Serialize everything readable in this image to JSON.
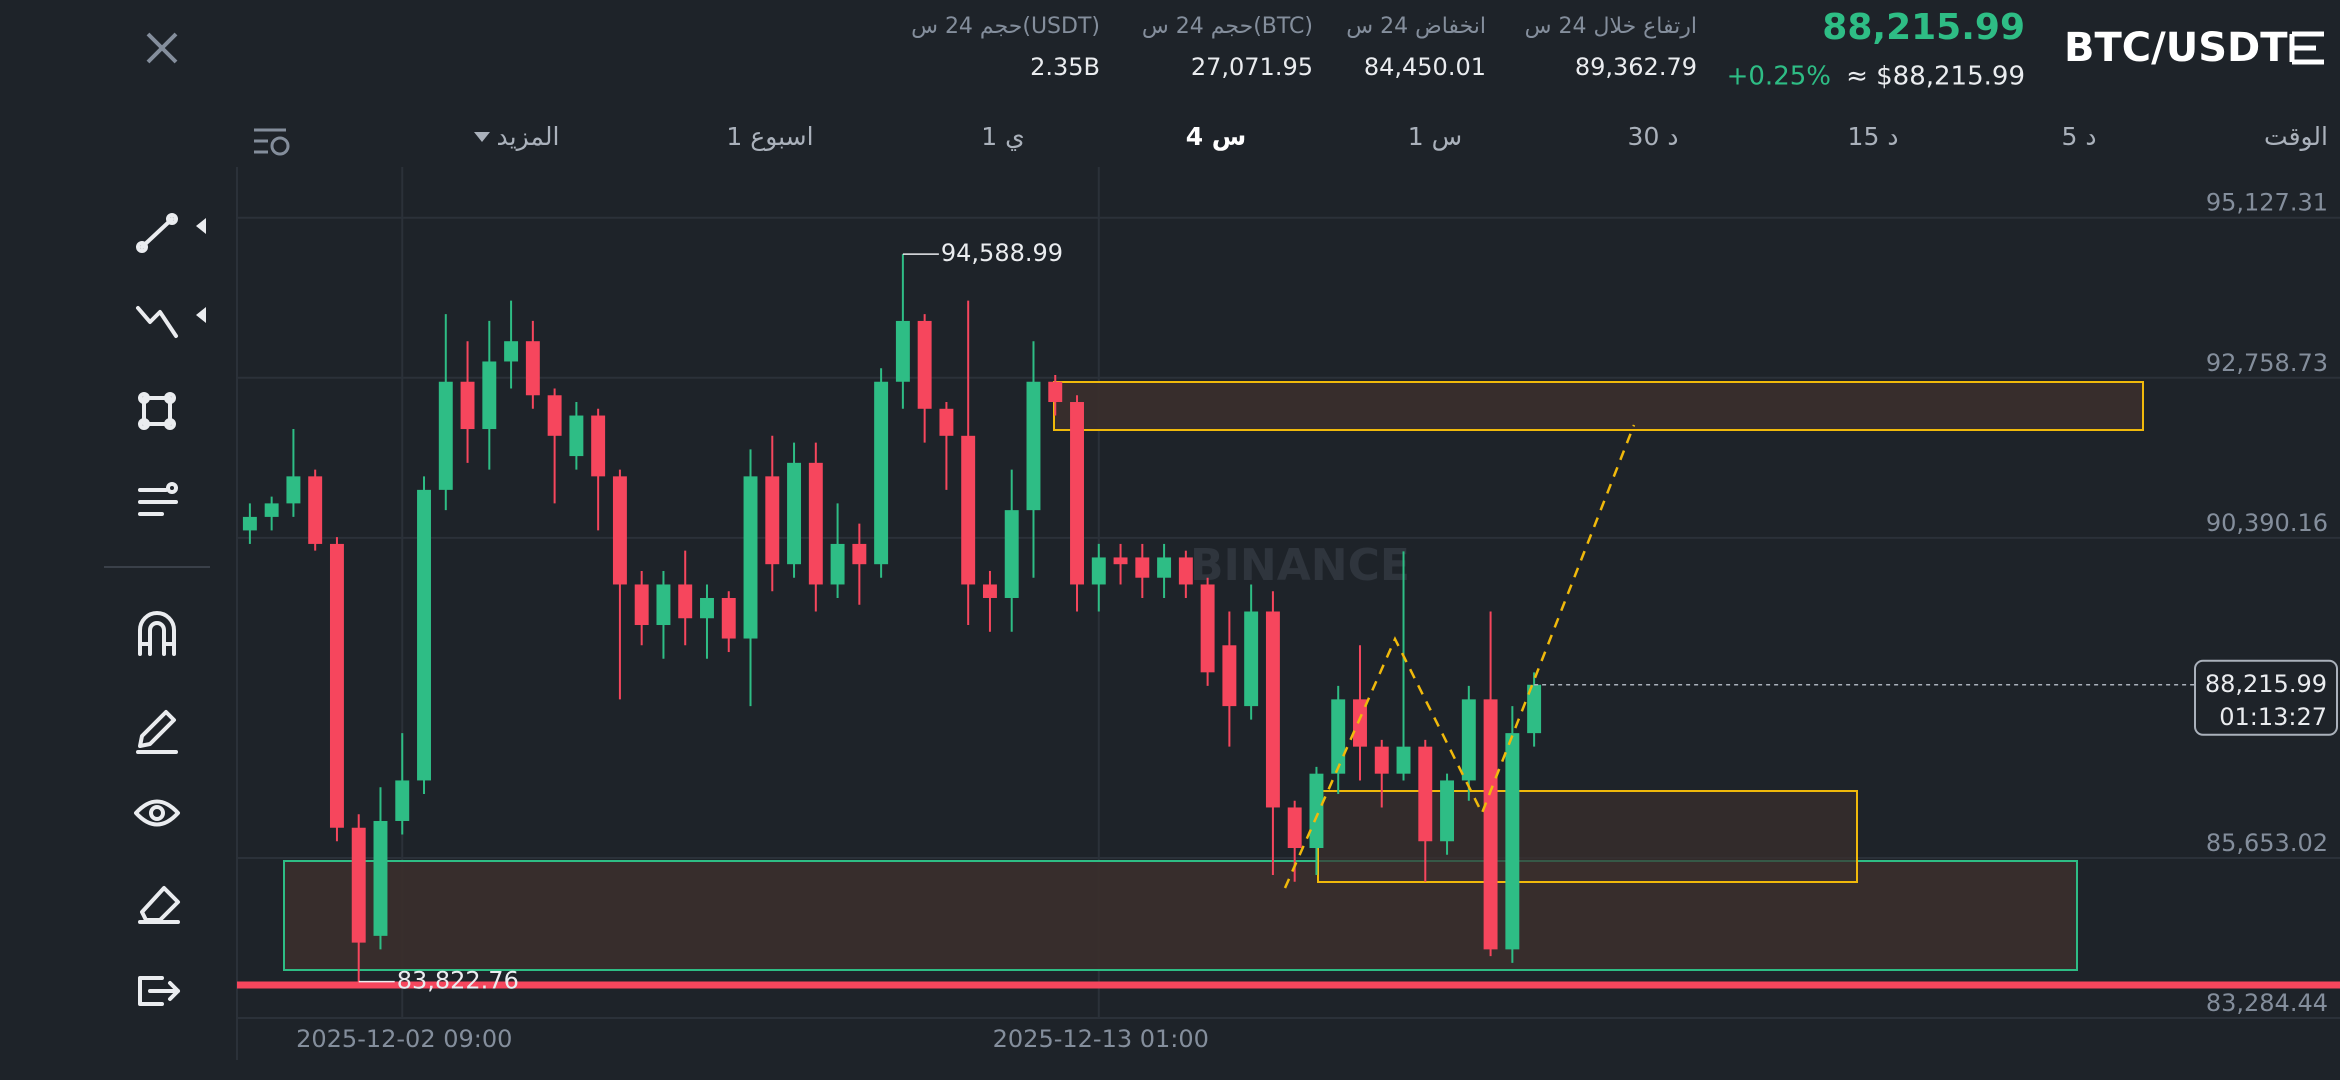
{
  "header": {
    "pair": "BTC/USDT",
    "price": "88,215.99",
    "change": "+0.25%",
    "price_usd": "≈ $88,215.99",
    "stats": [
      {
        "label": "ارتفاع خلال 24 س",
        "value": "89,362.79"
      },
      {
        "label": "انخفاض 24 س",
        "value": "84,450.01"
      },
      {
        "label": "حجم 24 س(BTC)",
        "value": "27,071.95"
      },
      {
        "label": "حجم 24 س(USDT)",
        "value": "2.35B"
      }
    ]
  },
  "timeframes": [
    "الوقت",
    "5 د",
    "15 د",
    "30 د",
    "1 س",
    "4 س",
    "1 ي",
    "1 اسبوع",
    "المزيد"
  ],
  "chart_data": {
    "type": "candlestick",
    "watermark": "BINANCE",
    "categories": [
      null,
      null,
      null,
      null,
      null,
      null,
      null,
      "2025-12-02 09:00",
      null,
      null,
      null,
      null,
      null,
      null,
      null,
      null,
      null,
      null,
      null,
      null,
      null,
      null,
      null,
      null,
      null,
      null,
      null,
      null,
      null,
      null,
      null,
      null,
      null,
      null,
      null,
      null,
      null,
      null,
      null,
      "2025-12-13 01:00",
      null,
      null,
      null,
      null,
      null,
      null,
      null,
      null,
      null,
      null,
      null,
      null,
      null,
      null,
      null,
      null,
      null,
      null,
      null,
      null
    ],
    "open": [
      90500,
      90700,
      90900,
      91300,
      90300,
      86100,
      84500,
      86200,
      86800,
      91100,
      92700,
      92000,
      93000,
      93300,
      92500,
      91600,
      92200,
      91300,
      89700,
      89100,
      89700,
      89200,
      89500,
      88900,
      91300,
      90000,
      91500,
      89700,
      90300,
      90000,
      92700,
      93600,
      92300,
      91900,
      89700,
      89500,
      90800,
      92700,
      92400,
      89700,
      90100,
      90100,
      89800,
      90100,
      89700,
      88800,
      87900,
      89300,
      86400,
      85800,
      86900,
      88000,
      87300,
      86900,
      87300,
      85900,
      86800,
      88000,
      84300,
      87500
    ],
    "high": [
      90900,
      91000,
      92000,
      91400,
      90400,
      86300,
      86700,
      87500,
      91300,
      93700,
      93300,
      93600,
      93900,
      93600,
      92600,
      92400,
      92300,
      91400,
      89900,
      89900,
      90200,
      89700,
      89600,
      91700,
      91900,
      91800,
      91800,
      90900,
      90600,
      92900,
      94588.99,
      93700,
      92400,
      93900,
      89900,
      91400,
      93300,
      92800,
      92500,
      90300,
      90300,
      90300,
      90300,
      90200,
      89800,
      89300,
      89700,
      89600,
      86500,
      87000,
      88200,
      88800,
      87400,
      90190,
      87400,
      86900,
      88200,
      89300,
      87900,
      88400
    ],
    "low": [
      90300,
      90500,
      90700,
      90200,
      85900,
      83822.76,
      84300,
      86000,
      86600,
      90800,
      91500,
      91400,
      92600,
      92300,
      90900,
      91400,
      90500,
      88000,
      88800,
      88600,
      88800,
      88600,
      88700,
      87900,
      89600,
      89800,
      89300,
      89500,
      89400,
      89800,
      92300,
      91800,
      91100,
      89100,
      89000,
      89000,
      89800,
      92200,
      89300,
      89300,
      89700,
      89500,
      89500,
      89500,
      88200,
      87300,
      87700,
      85400,
      85300,
      85400,
      86600,
      86800,
      86400,
      86800,
      85300,
      85700,
      86500,
      84200,
      84100,
      87300
    ],
    "close": [
      90700,
      90900,
      91300,
      90300,
      86100,
      84400,
      86200,
      86800,
      91100,
      92700,
      92000,
      93000,
      93300,
      92500,
      91900,
      92200,
      91300,
      89700,
      89100,
      89700,
      89200,
      89500,
      88900,
      91300,
      90000,
      91500,
      89700,
      90300,
      90000,
      92700,
      93600,
      92300,
      91900,
      89700,
      89500,
      90800,
      92700,
      92400,
      89700,
      90100,
      90000,
      89800,
      90100,
      89700,
      88400,
      87900,
      89300,
      86400,
      85800,
      86900,
      88000,
      87300,
      86900,
      87300,
      85900,
      86800,
      88000,
      84300,
      87500,
      88215.99
    ],
    "up_color": "#2ebd85",
    "down_color": "#f6465d",
    "ylim": [
      83284.44,
      95878
    ],
    "yticks": [
      {
        "value": 83284.44,
        "label": "83,284.44"
      },
      {
        "value": 85653.02,
        "label": "85,653.02"
      },
      {
        "value": 90390.16,
        "label": "90,390.16"
      },
      {
        "value": 92758.73,
        "label": "92,758.73"
      },
      {
        "value": 95127.31,
        "label": "95,127.31"
      }
    ],
    "grid": true,
    "high_marker": {
      "value": 94588.99,
      "label": "94,588.99"
    },
    "low_marker": {
      "value": 83822.76,
      "label": "83,822.76"
    },
    "last_price": {
      "value": 88215.99,
      "label": "88,215.99"
    },
    "countdown": "01:13:27"
  }
}
